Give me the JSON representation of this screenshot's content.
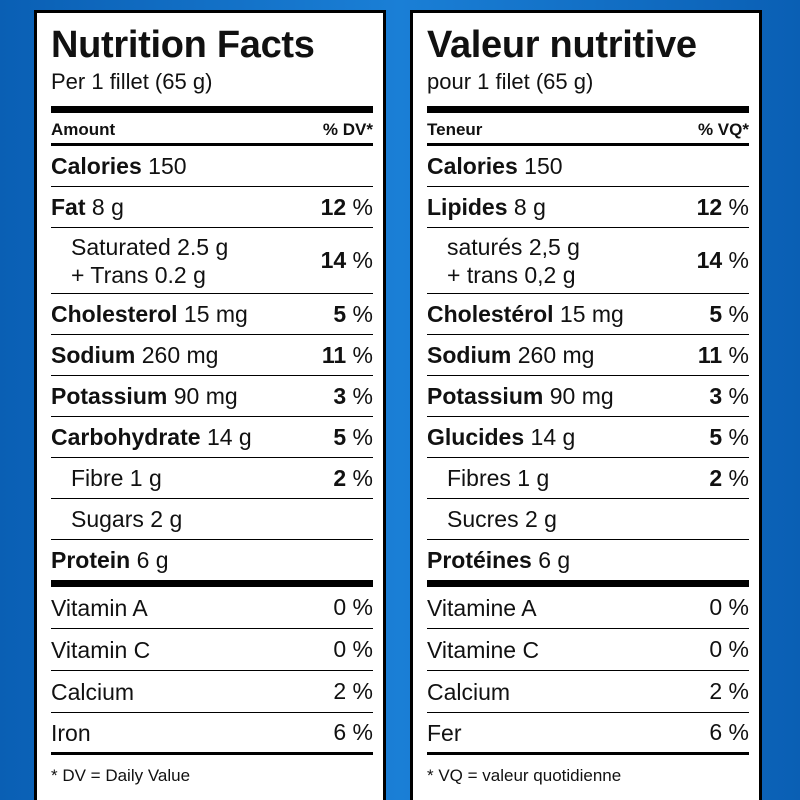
{
  "english": {
    "title": "Nutrition Facts",
    "serving": "Per 1 fillet (65 g)",
    "amount_label": "Amount",
    "dv_label": "% DV*",
    "calories": {
      "label": "Calories",
      "value": "150"
    },
    "fat": {
      "label": "Fat",
      "amount": "8 g",
      "pct_num": "12",
      "pct_sign": "%"
    },
    "saturated": {
      "line1": "Saturated 2.5 g",
      "line2": "+ Trans 0.2 g",
      "pct_num": "14",
      "pct_sign": "%"
    },
    "cholesterol": {
      "label": "Cholesterol",
      "amount": "15 mg",
      "pct_num": "5",
      "pct_sign": "%"
    },
    "sodium": {
      "label": "Sodium",
      "amount": "260 mg",
      "pct_num": "11",
      "pct_sign": "%"
    },
    "potassium": {
      "label": "Potassium",
      "amount": "90 mg",
      "pct_num": "3",
      "pct_sign": "%"
    },
    "carbohydrate": {
      "label": "Carbohydrate",
      "amount": "14 g",
      "pct_num": "5",
      "pct_sign": "%"
    },
    "fibre": {
      "label": "Fibre 1 g",
      "pct_num": "2",
      "pct_sign": "%"
    },
    "sugars": {
      "label": "Sugars 2 g"
    },
    "protein": {
      "label": "Protein",
      "amount": "6 g"
    },
    "vitamins": [
      {
        "label": "Vitamin A",
        "pct": "0 %"
      },
      {
        "label": "Vitamin C",
        "pct": "0 %"
      },
      {
        "label": "Calcium",
        "pct": "2 %"
      },
      {
        "label": "Iron",
        "pct": "6 %"
      }
    ],
    "footnote": "* DV = Daily Value"
  },
  "french": {
    "title": "Valeur nutritive",
    "serving": "pour 1 filet (65 g)",
    "amount_label": "Teneur",
    "dv_label": "% VQ*",
    "calories": {
      "label": "Calories",
      "value": "150"
    },
    "fat": {
      "label": "Lipides",
      "amount": "8 g",
      "pct_num": "12",
      "pct_sign": "%"
    },
    "saturated": {
      "line1": "saturés 2,5 g",
      "line2": "+ trans 0,2 g",
      "pct_num": "14",
      "pct_sign": "%"
    },
    "cholesterol": {
      "label": "Cholestérol",
      "amount": "15 mg",
      "pct_num": "5",
      "pct_sign": "%"
    },
    "sodium": {
      "label": "Sodium",
      "amount": "260 mg",
      "pct_num": "11",
      "pct_sign": "%"
    },
    "potassium": {
      "label": "Potassium",
      "amount": "90 mg",
      "pct_num": "3",
      "pct_sign": "%"
    },
    "carbohydrate": {
      "label": "Glucides",
      "amount": "14 g",
      "pct_num": "5",
      "pct_sign": "%"
    },
    "fibre": {
      "label": "Fibres 1 g",
      "pct_num": "2",
      "pct_sign": "%"
    },
    "sugars": {
      "label": "Sucres 2 g"
    },
    "protein": {
      "label": "Protéines",
      "amount": "6 g"
    },
    "vitamins": [
      {
        "label": "Vitamine A",
        "pct": "0 %"
      },
      {
        "label": "Vitamine C",
        "pct": "0 %"
      },
      {
        "label": "Calcium",
        "pct": "2 %"
      },
      {
        "label": "Fer",
        "pct": "6 %"
      }
    ],
    "footnote": "* VQ = valeur quotidienne"
  }
}
